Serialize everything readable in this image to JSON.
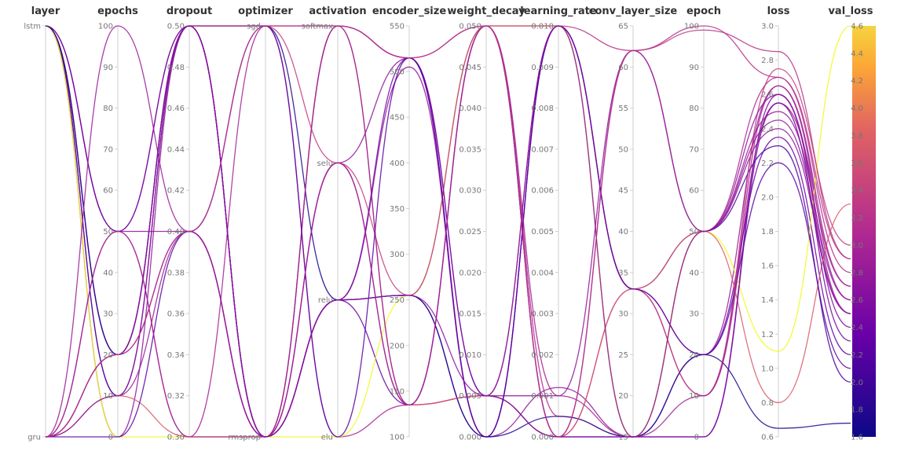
{
  "chart_data": {
    "type": "parallel_coordinates",
    "color_by": "val_loss",
    "colorscale": [
      "#0d0887",
      "#6a00a8",
      "#b12a90",
      "#e16462",
      "#fca636",
      "#f0f921"
    ],
    "axes": [
      {
        "name": "layer",
        "title": "layer",
        "kind": "categorical",
        "categories": [
          "lstm",
          "gru"
        ],
        "tick_labels": [
          "lstm",
          "gru"
        ]
      },
      {
        "name": "epochs",
        "title": "epochs",
        "kind": "numeric",
        "range": [
          0,
          100
        ],
        "tick_labels": [
          "100",
          "90",
          "80",
          "70",
          "60",
          "50",
          "40",
          "30",
          "20",
          "10",
          "0"
        ]
      },
      {
        "name": "dropout",
        "title": "dropout",
        "kind": "numeric",
        "range": [
          0.3,
          0.5
        ],
        "tick_labels": [
          "0.50",
          "0.48",
          "0.46",
          "0.44",
          "0.42",
          "0.40",
          "0.38",
          "0.36",
          "0.34",
          "0.32",
          "0.30"
        ]
      },
      {
        "name": "optimizer",
        "title": "optimizer",
        "kind": "categorical",
        "categories": [
          "sgd",
          "rmsprop"
        ],
        "tick_labels": [
          "sgd",
          "rmsprop"
        ]
      },
      {
        "name": "activation",
        "title": "activation",
        "kind": "categorical",
        "categories": [
          "softmax",
          "selu",
          "relu",
          "elu"
        ],
        "tick_labels": [
          "softmax",
          "selu",
          "relu",
          "elu"
        ]
      },
      {
        "name": "encoder_size",
        "title": "encoder_size",
        "kind": "numeric",
        "range": [
          100,
          550
        ],
        "tick_labels": [
          "550",
          "500",
          "450",
          "400",
          "350",
          "300",
          "250",
          "200",
          "150",
          "100"
        ]
      },
      {
        "name": "weight_decay",
        "title": "weight_decay",
        "kind": "numeric",
        "range": [
          0,
          0.05
        ],
        "tick_labels": [
          "0.050",
          "0.045",
          "0.040",
          "0.035",
          "0.030",
          "0.025",
          "0.020",
          "0.015",
          "0.010",
          "0.005",
          "0.000"
        ]
      },
      {
        "name": "learning_rate",
        "title": "learning_rate",
        "kind": "numeric",
        "range": [
          0,
          0.01
        ],
        "tick_labels": [
          "0.010",
          "0.009",
          "0.008",
          "0.007",
          "0.006",
          "0.005",
          "0.004",
          "0.003",
          "0.002",
          "0.001",
          "0.000"
        ]
      },
      {
        "name": "conv_layer_size",
        "title": "conv_layer_size",
        "kind": "numeric",
        "range": [
          15,
          65
        ],
        "tick_labels": [
          "65",
          "60",
          "55",
          "50",
          "45",
          "40",
          "35",
          "30",
          "25",
          "20",
          "15"
        ]
      },
      {
        "name": "epoch",
        "title": "epoch",
        "kind": "numeric",
        "range": [
          0,
          100
        ],
        "tick_labels": [
          "100",
          "90",
          "80",
          "70",
          "60",
          "50",
          "40",
          "30",
          "20",
          "10",
          "0"
        ]
      },
      {
        "name": "loss",
        "title": "loss",
        "kind": "numeric",
        "range": [
          0.6,
          3.0
        ],
        "tick_labels": [
          "3.0",
          "2.8",
          "2.6",
          "2.4",
          "2.2",
          "2.0",
          "1.8",
          "1.6",
          "1.4",
          "1.2",
          "1.0",
          "0.8",
          "0.6"
        ]
      },
      {
        "name": "val_loss",
        "title": "val_loss",
        "kind": "numeric",
        "range": [
          1.6,
          4.6
        ],
        "tick_labels": [
          "4.6",
          "4.4",
          "4.2",
          "4.0",
          "3.8",
          "3.6",
          "3.4",
          "3.2",
          "3.0",
          "2.8",
          "2.6",
          "2.4",
          "2.2",
          "2.0",
          "1.8",
          "1.6"
        ]
      }
    ],
    "runs": [
      {
        "layer": "lstm",
        "epochs": 50,
        "dropout": 0.5,
        "optimizer": "sgd",
        "activation": "softmax",
        "encoder_size": 515,
        "weight_decay": 0.05,
        "learning_rate": 0.01,
        "conv_layer_size": 62,
        "epoch": 99,
        "loss": 2.85,
        "val_loss": 2.9
      },
      {
        "layer": "lstm",
        "epochs": 20,
        "dropout": 0.5,
        "optimizer": "rmsprop",
        "activation": "relu",
        "encoder_size": 255,
        "weight_decay": 0.05,
        "learning_rate": 0.0005,
        "conv_layer_size": 15,
        "epoch": 50,
        "loss": 2.7,
        "val_loss": 2.8
      },
      {
        "layer": "lstm",
        "epochs": 10,
        "dropout": 0.4,
        "optimizer": "rmsprop",
        "activation": "selu",
        "encoder_size": 135,
        "weight_decay": 0.005,
        "learning_rate": 0.01,
        "conv_layer_size": 33,
        "epoch": 20,
        "loss": 2.65,
        "val_loss": 2.6
      },
      {
        "layer": "lstm",
        "epochs": 0,
        "dropout": 0.5,
        "optimizer": "rmsprop",
        "activation": "relu",
        "encoder_size": 505,
        "weight_decay": 0.0,
        "learning_rate": 0.0012,
        "conv_layer_size": 15,
        "epoch": 50,
        "loss": 2.4,
        "val_loss": 2.5
      },
      {
        "layer": "lstm",
        "epochs": 50,
        "dropout": 0.3,
        "optimizer": "sgd",
        "activation": "elu",
        "encoder_size": 135,
        "weight_decay": 0.005,
        "learning_rate": 0.0,
        "conv_layer_size": 33,
        "epoch": 10,
        "loss": 2.55,
        "val_loss": 2.7
      },
      {
        "layer": "lstm",
        "epochs": 20,
        "dropout": 0.4,
        "optimizer": "rmsprop",
        "activation": "softmax",
        "encoder_size": 515,
        "weight_decay": 0.0,
        "learning_rate": 0.01,
        "conv_layer_size": 15,
        "epoch": 0,
        "loss": 2.6,
        "val_loss": 2.4
      },
      {
        "layer": "lstm",
        "epochs": 50,
        "dropout": 0.5,
        "optimizer": "rmsprop",
        "activation": "relu",
        "encoder_size": 135,
        "weight_decay": 0.05,
        "learning_rate": 0.0,
        "conv_layer_size": 15,
        "epoch": 20,
        "loss": 2.35,
        "val_loss": 2.2
      },
      {
        "layer": "lstm",
        "epochs": 10,
        "dropout": 0.5,
        "optimizer": "rmsprop",
        "activation": "relu",
        "encoder_size": 255,
        "weight_decay": 0.0,
        "learning_rate": 0.01,
        "conv_layer_size": 33,
        "epoch": 50,
        "loss": 2.3,
        "val_loss": 2.0
      },
      {
        "layer": "lstm",
        "epochs": 0,
        "dropout": 0.3,
        "optimizer": "rmsprop",
        "activation": "elu",
        "encoder_size": 255,
        "weight_decay": 0.05,
        "learning_rate": 0.01,
        "conv_layer_size": 15,
        "epoch": 50,
        "loss": 1.1,
        "val_loss": 4.6
      },
      {
        "layer": "lstm",
        "epochs": 20,
        "dropout": 0.5,
        "optimizer": "sgd",
        "activation": "relu",
        "encoder_size": 255,
        "weight_decay": 0.0,
        "learning_rate": 0.0005,
        "conv_layer_size": 15,
        "epoch": 20,
        "loss": 0.65,
        "val_loss": 1.7
      },
      {
        "layer": "gru",
        "epochs": 50,
        "dropout": 0.4,
        "optimizer": "rmsprop",
        "activation": "selu",
        "encoder_size": 515,
        "weight_decay": 0.005,
        "learning_rate": 0.001,
        "conv_layer_size": 62,
        "epoch": 50,
        "loss": 2.45,
        "val_loss": 2.5
      },
      {
        "layer": "gru",
        "epochs": 20,
        "dropout": 0.5,
        "optimizer": "sgd",
        "activation": "selu",
        "encoder_size": 255,
        "weight_decay": 0.05,
        "learning_rate": 0.01,
        "conv_layer_size": 33,
        "epoch": 10,
        "loss": 2.75,
        "val_loss": 3.0
      },
      {
        "layer": "gru",
        "epochs": 10,
        "dropout": 0.3,
        "optimizer": "rmsprop",
        "activation": "softmax",
        "encoder_size": 135,
        "weight_decay": 0.005,
        "learning_rate": 0.0,
        "conv_layer_size": 33,
        "epoch": 50,
        "loss": 0.8,
        "val_loss": 3.3
      },
      {
        "layer": "gru",
        "epochs": 100,
        "dropout": 0.4,
        "optimizer": "rmsprop",
        "activation": "softmax",
        "encoder_size": 135,
        "weight_decay": 0.05,
        "learning_rate": 0.0,
        "conv_layer_size": 62,
        "epoch": 50,
        "loss": 2.5,
        "val_loss": 2.6
      },
      {
        "layer": "gru",
        "epochs": 20,
        "dropout": 0.5,
        "optimizer": "rmsprop",
        "activation": "relu",
        "encoder_size": 515,
        "weight_decay": 0.005,
        "learning_rate": 0.0,
        "conv_layer_size": 15,
        "epoch": 0,
        "loss": 2.55,
        "val_loss": 2.3
      },
      {
        "layer": "gru",
        "epochs": 0,
        "dropout": 0.4,
        "optimizer": "sgd",
        "activation": "elu",
        "encoder_size": 515,
        "weight_decay": 0.0,
        "learning_rate": 0.01,
        "conv_layer_size": 33,
        "epoch": 20,
        "loss": 2.2,
        "val_loss": 2.1
      },
      {
        "layer": "gru",
        "epochs": 50,
        "dropout": 0.3,
        "optimizer": "rmsprop",
        "activation": "selu",
        "encoder_size": 135,
        "weight_decay": 0.05,
        "learning_rate": 0.001,
        "conv_layer_size": 15,
        "epoch": 10,
        "loss": 2.65,
        "val_loss": 2.7
      },
      {
        "layer": "gru",
        "epochs": 10,
        "dropout": 0.5,
        "optimizer": "rmsprop",
        "activation": "relu",
        "encoder_size": 255,
        "weight_decay": 0.005,
        "learning_rate": 0.01,
        "conv_layer_size": 15,
        "epoch": 50,
        "loss": 2.6,
        "val_loss": 2.5
      },
      {
        "layer": "gru",
        "epochs": 20,
        "dropout": 0.4,
        "optimizer": "sgd",
        "activation": "softmax",
        "encoder_size": 515,
        "weight_decay": 0.05,
        "learning_rate": 0.0,
        "conv_layer_size": 62,
        "epoch": 100,
        "loss": 2.7,
        "val_loss": 2.9
      }
    ]
  }
}
